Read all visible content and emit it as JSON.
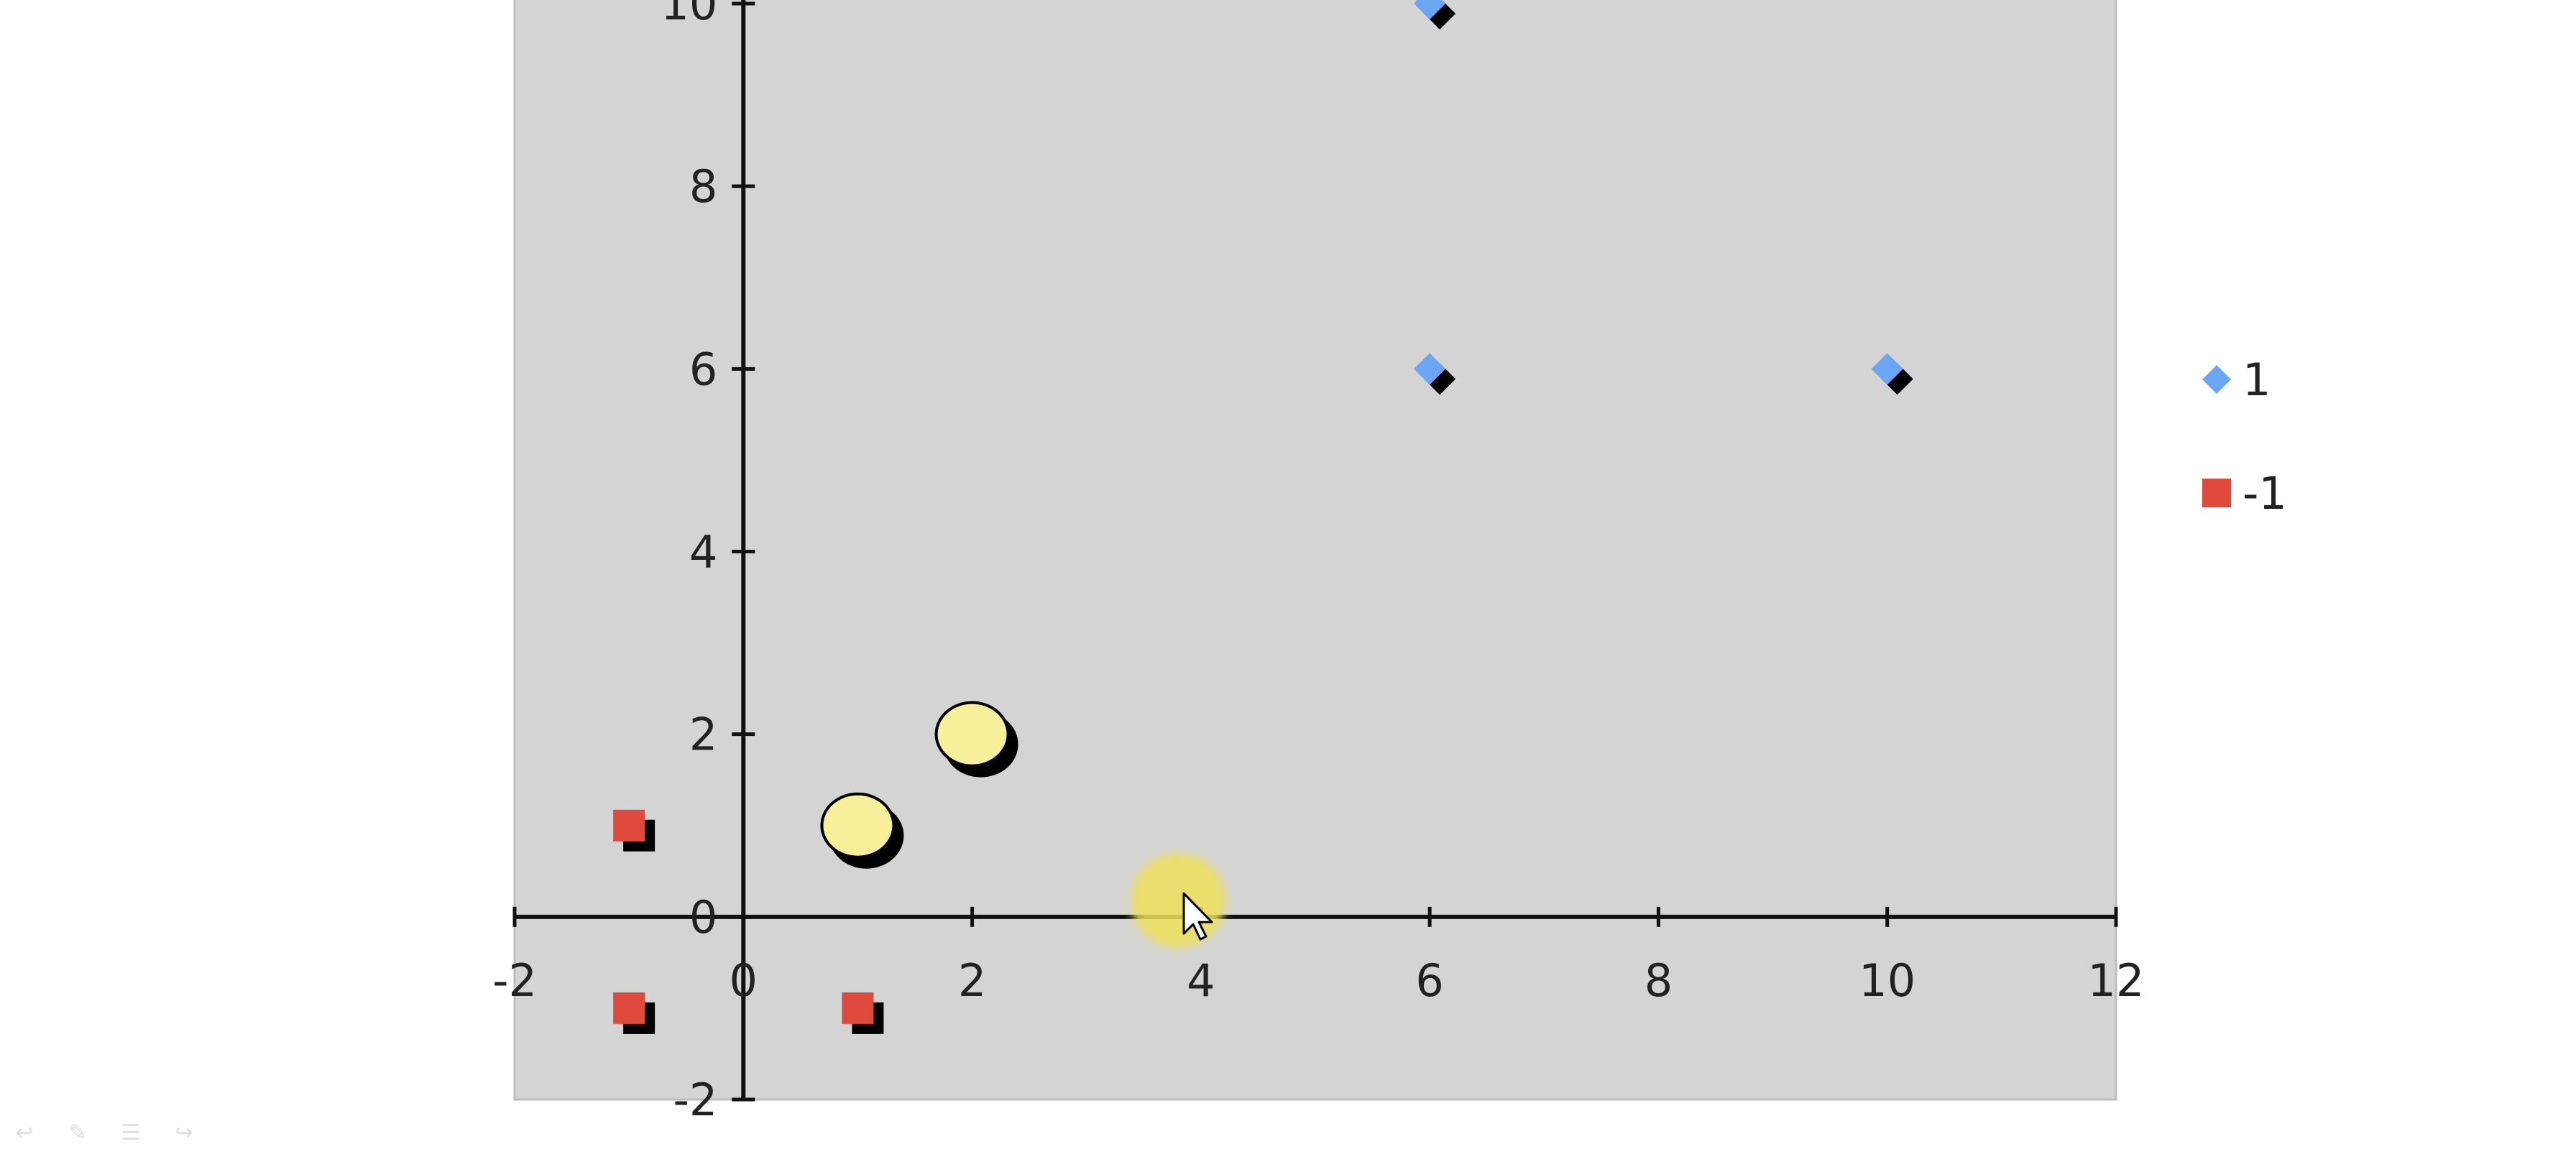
{
  "chart_data": {
    "type": "scatter",
    "title": "",
    "xlabel": "",
    "ylabel": "",
    "xlim": [
      -2,
      12
    ],
    "ylim": [
      -2,
      10
    ],
    "x_ticks": [
      -2,
      0,
      2,
      4,
      6,
      8,
      10,
      12
    ],
    "y_ticks": [
      -2,
      0,
      2,
      4,
      6,
      8,
      10
    ],
    "grid": false,
    "plot_background": "#d4d4d4",
    "legend_position": "right",
    "series": [
      {
        "name": "1",
        "marker": "diamond",
        "color": "#6aa6f2",
        "points": [
          [
            6,
            10
          ],
          [
            6,
            6
          ],
          [
            10,
            6
          ]
        ]
      },
      {
        "name": "-1",
        "marker": "square",
        "color": "#e04a3c",
        "points": [
          [
            -1,
            1
          ],
          [
            -1,
            -1
          ],
          [
            1,
            -1
          ]
        ]
      }
    ],
    "highlights": {
      "marker": "circle",
      "color": "#f7ef9a",
      "points": [
        [
          1,
          1
        ],
        [
          2,
          2
        ]
      ]
    }
  },
  "cursor": {
    "highlight_color": "#efe05a",
    "x": 3.8,
    "y": 0.1
  },
  "slide_controls": [
    {
      "name": "previous-slide-icon",
      "glyph": "↩"
    },
    {
      "name": "pen-icon",
      "glyph": "✎"
    },
    {
      "name": "menu-icon",
      "glyph": "☰"
    },
    {
      "name": "next-slide-icon",
      "glyph": "↪"
    }
  ]
}
